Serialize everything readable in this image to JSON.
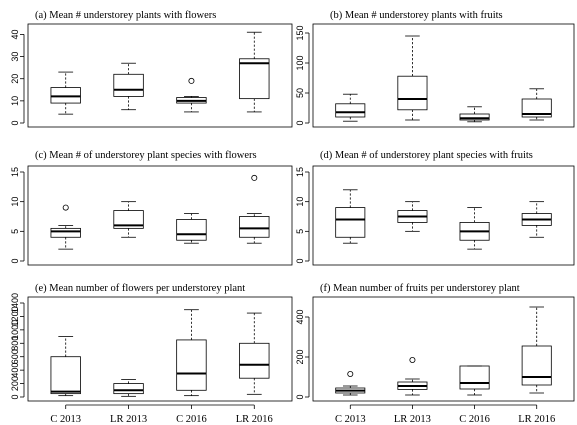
{
  "categories": [
    "C 2013",
    "LR 2013",
    "C 2016",
    "LR 2016"
  ],
  "chart_data": [
    {
      "type": "box",
      "title": "(a)  Mean # understorey plants with flowers",
      "yticks": [
        0,
        10,
        20,
        30,
        40
      ],
      "ylim": [
        0,
        42
      ],
      "boxes": [
        {
          "category": "C 2013",
          "min": 4,
          "q1": 9,
          "median": 12,
          "q3": 16,
          "max": 23,
          "outliers": []
        },
        {
          "category": "LR 2013",
          "min": 6,
          "q1": 12,
          "median": 15,
          "q3": 22,
          "max": 27,
          "outliers": []
        },
        {
          "category": "C 2016",
          "min": 5,
          "q1": 9,
          "median": 10,
          "q3": 11.5,
          "max": 12,
          "outliers": [
            19
          ]
        },
        {
          "category": "LR 2016",
          "min": 5,
          "q1": 11,
          "median": 27,
          "q3": 29,
          "max": 41,
          "outliers": []
        }
      ]
    },
    {
      "type": "box",
      "title": "(b)      Mean # understorey plants with fruits",
      "yticks": [
        0,
        50,
        100,
        150
      ],
      "ylim": [
        0,
        155
      ],
      "boxes": [
        {
          "category": "C 2013",
          "min": 3,
          "q1": 10,
          "median": 18,
          "q3": 32,
          "max": 48,
          "outliers": []
        },
        {
          "category": "LR 2013",
          "min": 5,
          "q1": 22,
          "median": 40,
          "q3": 78,
          "max": 145,
          "outliers": []
        },
        {
          "category": "C 2016",
          "min": 2,
          "q1": 5,
          "median": 8,
          "q3": 15,
          "max": 27,
          "outliers": []
        },
        {
          "category": "LR 2016",
          "min": 5,
          "q1": 10,
          "median": 15,
          "q3": 40,
          "max": 57,
          "outliers": []
        }
      ]
    },
    {
      "type": "box",
      "title": "(c)  Mean # of understorey plant species with flowers",
      "yticks": [
        0,
        5,
        10,
        15
      ],
      "ylim": [
        0,
        15
      ],
      "boxes": [
        {
          "category": "C 2013",
          "min": 2,
          "q1": 4,
          "median": 5,
          "q3": 5.5,
          "max": 6,
          "outliers": [
            9
          ]
        },
        {
          "category": "LR 2013",
          "min": 4,
          "q1": 5.5,
          "median": 6,
          "q3": 8.5,
          "max": 10,
          "outliers": []
        },
        {
          "category": "C 2016",
          "min": 3,
          "q1": 3.5,
          "median": 4.5,
          "q3": 7,
          "max": 8,
          "outliers": []
        },
        {
          "category": "LR 2016",
          "min": 3,
          "q1": 4,
          "median": 5.5,
          "q3": 7.5,
          "max": 8,
          "outliers": [
            14
          ]
        }
      ]
    },
    {
      "type": "box",
      "title": "(d)        Mean # of understorey plant species with fruits",
      "yticks": [
        0,
        5,
        10,
        15
      ],
      "ylim": [
        0,
        15
      ],
      "boxes": [
        {
          "category": "C 2013",
          "min": 3,
          "q1": 4,
          "median": 7,
          "q3": 9,
          "max": 12,
          "outliers": []
        },
        {
          "category": "LR 2013",
          "min": 5,
          "q1": 6.5,
          "median": 7.5,
          "q3": 8.5,
          "max": 10,
          "outliers": []
        },
        {
          "category": "C 2016",
          "min": 2,
          "q1": 3.5,
          "median": 5,
          "q3": 6.5,
          "max": 9,
          "outliers": []
        },
        {
          "category": "LR 2016",
          "min": 4,
          "q1": 6,
          "median": 7,
          "q3": 8,
          "max": 10,
          "outliers": []
        }
      ]
    },
    {
      "type": "box",
      "title": "(e)  Mean number of flowers per understorey plant",
      "yticks": [
        0,
        200,
        400,
        600,
        800,
        1000,
        1200,
        1400
      ],
      "ylim": [
        0,
        1400
      ],
      "boxes": [
        {
          "category": "C 2013",
          "min": 20,
          "q1": 50,
          "median": 80,
          "q3": 600,
          "max": 900,
          "outliers": []
        },
        {
          "category": "LR 2013",
          "min": 10,
          "q1": 50,
          "median": 100,
          "q3": 200,
          "max": 260,
          "outliers": []
        },
        {
          "category": "C 2016",
          "min": 20,
          "q1": 100,
          "median": 350,
          "q3": 850,
          "max": 1300,
          "outliers": []
        },
        {
          "category": "LR 2016",
          "min": 40,
          "q1": 280,
          "median": 480,
          "q3": 800,
          "max": 1250,
          "outliers": []
        }
      ]
    },
    {
      "type": "box",
      "title": "(f)     Mean number of fruits per understorey plant",
      "yticks": [
        0,
        200,
        400
      ],
      "ylim": [
        0,
        470
      ],
      "boxes": [
        {
          "category": "C 2013",
          "min": 10,
          "q1": 20,
          "median": 32,
          "q3": 45,
          "max": 55,
          "outliers": [
            115
          ]
        },
        {
          "category": "LR 2013",
          "min": 10,
          "q1": 38,
          "median": 55,
          "q3": 75,
          "max": 90,
          "outliers": [
            185
          ]
        },
        {
          "category": "C 2016",
          "min": 10,
          "q1": 40,
          "median": 70,
          "q3": 155,
          "max": 155,
          "outliers": []
        },
        {
          "category": "LR 2016",
          "min": 20,
          "q1": 60,
          "median": 100,
          "q3": 255,
          "max": 450,
          "outliers": []
        }
      ]
    }
  ]
}
